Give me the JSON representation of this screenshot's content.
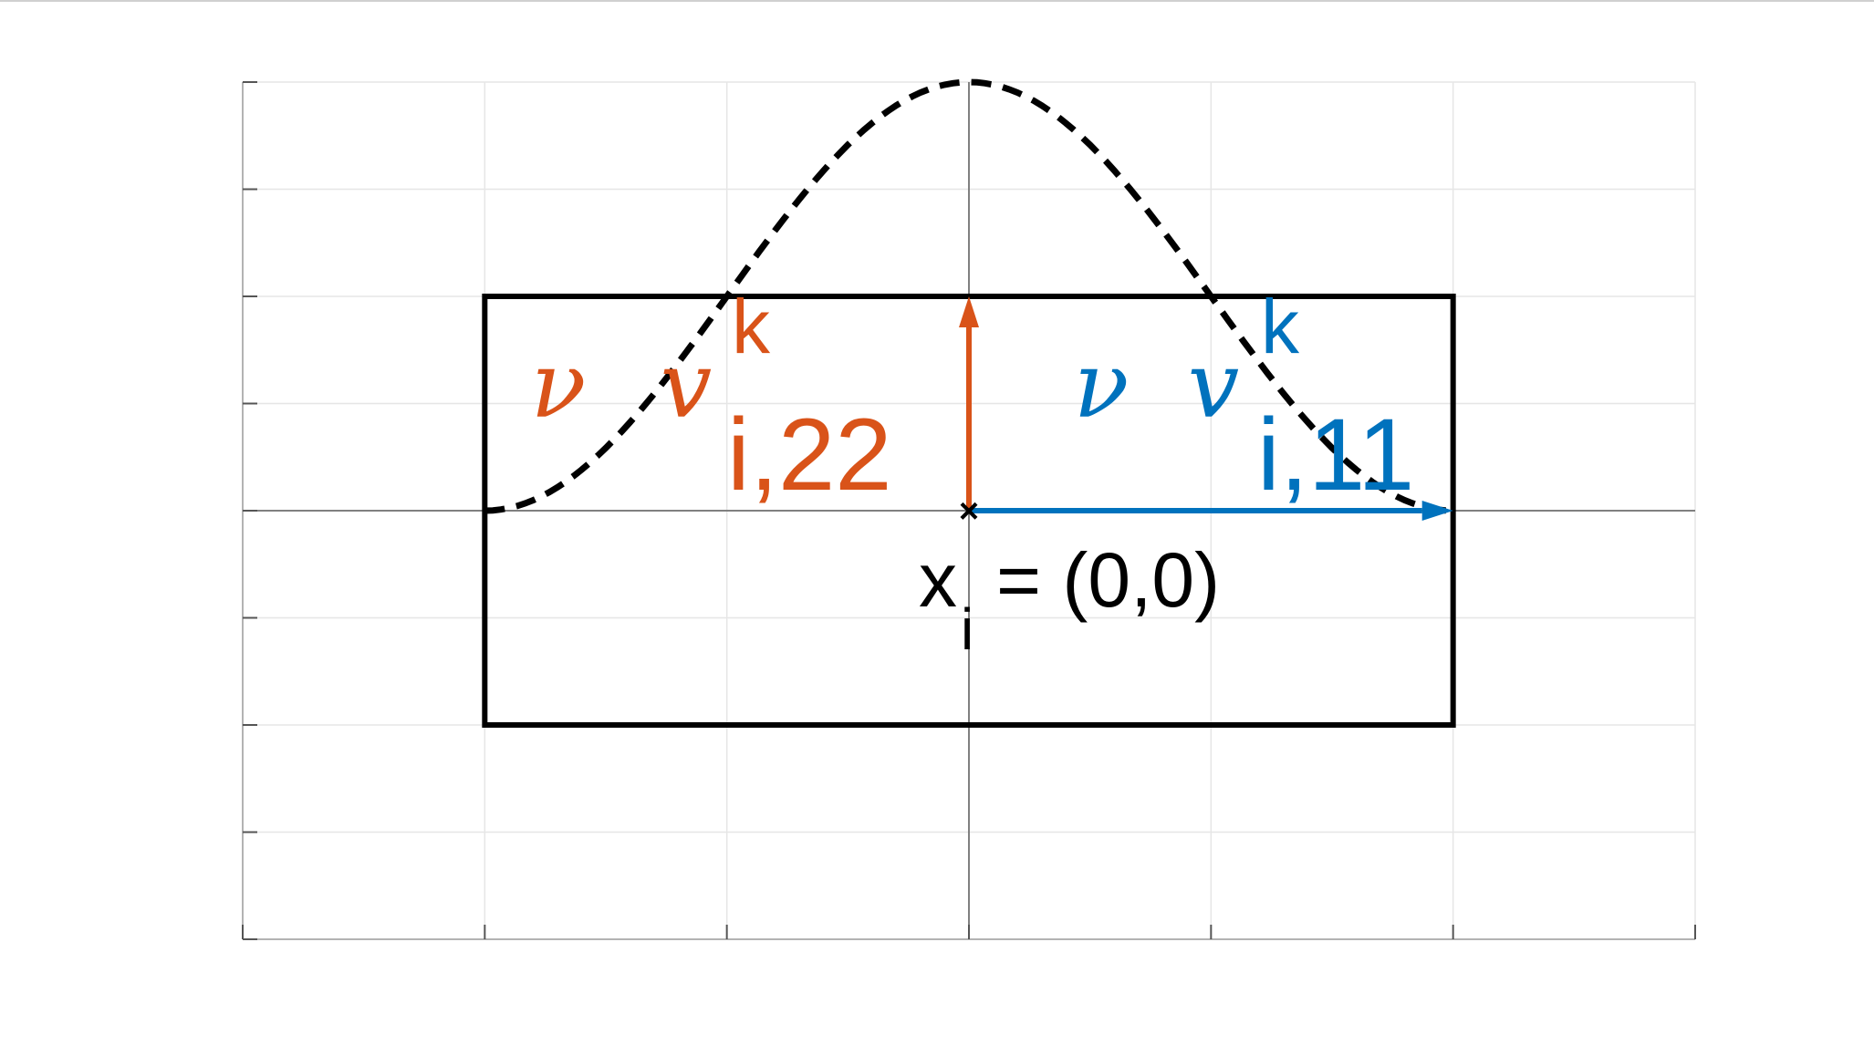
{
  "labels": {
    "red": {
      "nu": "ν",
      "v": "v",
      "sup": "k",
      "sub": "i,22"
    },
    "blue": {
      "nu": "ν",
      "v": "v",
      "sup": "k",
      "sub": "i,11"
    },
    "origin": {
      "x": "x",
      "sub": "i",
      "rest": "= (0,0)"
    }
  },
  "colors": {
    "red": "#D95319",
    "blue": "#0072BD",
    "black": "#000000",
    "grid": "#E6E6E6",
    "axis": "#B3B3B3"
  },
  "chart_data": {
    "type": "diagram",
    "xlim": [
      -3,
      3
    ],
    "ylim": [
      -4,
      4
    ],
    "grid": true,
    "rectangle": {
      "x": [
        -2,
        2
      ],
      "y": [
        -2,
        2
      ]
    },
    "dashed_curve": {
      "x_range": [
        -2,
        2
      ],
      "peak": 4,
      "shape": "cosine"
    },
    "arrows": [
      {
        "name": "red",
        "from": [
          0,
          0
        ],
        "to": [
          0,
          2
        ]
      },
      {
        "name": "blue",
        "from": [
          0,
          0
        ],
        "to": [
          2,
          0
        ]
      }
    ],
    "origin_point": [
      0,
      0
    ]
  }
}
